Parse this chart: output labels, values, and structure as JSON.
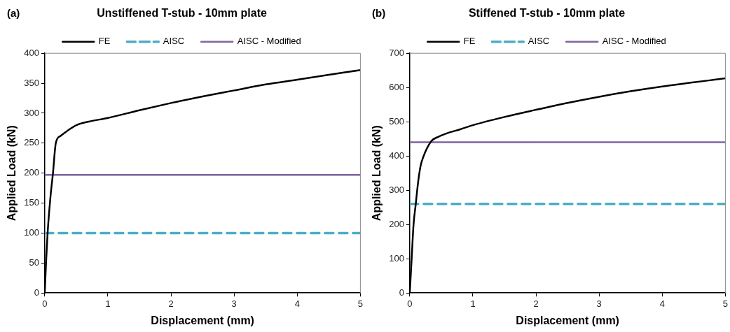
{
  "chart_data": [
    {
      "type": "line",
      "title": "Unstiffened T-stub - 10mm plate",
      "xlabel": "Displacement (mm)",
      "ylabel": "Applied Load (kN)",
      "annotations": [
        "(a)"
      ],
      "legend": "top",
      "grid": false,
      "xlim": [
        0,
        5
      ],
      "xticks": [
        0,
        1,
        2,
        3,
        4,
        5
      ],
      "ylim": [
        0,
        400
      ],
      "yticks": [
        0,
        50,
        100,
        150,
        200,
        250,
        300,
        350,
        400
      ],
      "series": [
        {
          "name": "FE",
          "color": "#000000",
          "line_style": "solid",
          "x": [
            0,
            0.02,
            0.045,
            0.09,
            0.13,
            0.175,
            0.25,
            0.35,
            0.5,
            0.7,
            1,
            1.5,
            2,
            2.5,
            3,
            3.5,
            4,
            4.5,
            5
          ],
          "values": [
            0,
            50,
            100,
            160,
            200,
            250,
            262,
            270,
            280,
            286,
            292,
            305,
            317,
            328,
            338,
            348,
            356,
            364,
            372
          ]
        },
        {
          "name": "AISC",
          "color": "#4bacc6",
          "line_style": "dashed",
          "x": [
            0,
            5
          ],
          "values": [
            100,
            100
          ]
        },
        {
          "name": "AISC - Modified",
          "color": "#8064a2",
          "line_style": "solid",
          "x": [
            0,
            5
          ],
          "values": [
            197,
            197
          ]
        }
      ]
    },
    {
      "type": "line",
      "title": "Stiffened T-stub - 10mm plate",
      "xlabel": "Displacement (mm)",
      "ylabel": "Applied Load (kN)",
      "annotations": [
        "(b)"
      ],
      "legend": "top",
      "grid": false,
      "xlim": [
        0,
        5
      ],
      "xticks": [
        0,
        1,
        2,
        3,
        4,
        5
      ],
      "ylim": [
        0,
        700
      ],
      "yticks": [
        0,
        100,
        200,
        300,
        400,
        500,
        600,
        700
      ],
      "series": [
        {
          "name": "FE",
          "color": "#000000",
          "line_style": "solid",
          "x": [
            0,
            0.03,
            0.06,
            0.095,
            0.13,
            0.17,
            0.22,
            0.28,
            0.35,
            0.45,
            0.6,
            0.8,
            1,
            1.5,
            2,
            2.5,
            3,
            3.5,
            4,
            4.5,
            5
          ],
          "values": [
            0,
            100,
            200,
            260,
            320,
            370,
            400,
            425,
            445,
            456,
            467,
            478,
            490,
            514,
            535,
            555,
            573,
            589,
            603,
            615,
            627
          ]
        },
        {
          "name": "AISC",
          "color": "#4bacc6",
          "line_style": "dashed",
          "x": [
            0,
            5
          ],
          "values": [
            260,
            260
          ]
        },
        {
          "name": "AISC - Modified",
          "color": "#8064a2",
          "line_style": "solid",
          "x": [
            0,
            5
          ],
          "values": [
            440,
            440
          ]
        }
      ]
    }
  ]
}
